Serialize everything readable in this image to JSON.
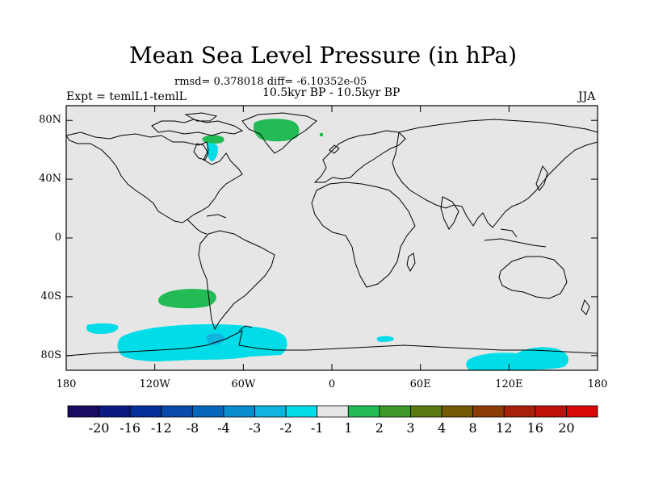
{
  "header": {
    "title": "Mean Sea Level Pressure (in hPa)",
    "stats": "rmsd= 0.378018 diff= -6.10352e-05",
    "experiment": "Expt = temlL1-temlL",
    "period": "10.5kyr BP - 10.5kyr BP",
    "season": "JJA"
  },
  "map": {
    "projection": "cylindrical equidistant",
    "lat_labels": [
      "80N",
      "40N",
      "0",
      "40S",
      "80S"
    ],
    "lat_values": [
      80,
      40,
      0,
      -40,
      -80
    ],
    "lon_labels": [
      "180",
      "120W",
      "60W",
      "0",
      "60E",
      "120E",
      "180"
    ],
    "lon_values": [
      -180,
      -120,
      -60,
      0,
      60,
      120,
      180
    ],
    "lat_range": [
      -90,
      90
    ],
    "lon_range": [
      -180,
      180
    ],
    "background_color": "#e6e6e6",
    "anomaly_regions": [
      {
        "name": "greenland-high",
        "sign": "positive",
        "bin": "1 to 2",
        "color": "#22bb55"
      },
      {
        "name": "hudson-bay-low",
        "sign": "negative",
        "bin": "-2 to -1",
        "color": "#00dde8"
      },
      {
        "name": "south-pacific-high",
        "sign": "positive",
        "bin": "1 to 2",
        "color": "#22bb55"
      },
      {
        "name": "antarctic-low",
        "sign": "negative",
        "bin": "-2 to -1",
        "color": "#00dde8"
      },
      {
        "name": "antarctic-low-core",
        "sign": "negative",
        "bin": "-3 to -2",
        "color": "#10b4e0"
      },
      {
        "name": "east-antarctic-low",
        "sign": "negative",
        "bin": "-2 to -1",
        "color": "#00dde8"
      }
    ]
  },
  "colorbar": {
    "labels": [
      "-20",
      "-16",
      "-12",
      "-8",
      "-4",
      "-3",
      "-2",
      "-1",
      "1",
      "2",
      "3",
      "4",
      "8",
      "12",
      "16",
      "20"
    ],
    "colors": [
      "#1a0a60",
      "#0c1a80",
      "#05309a",
      "#0a4aaa",
      "#0866bb",
      "#0a8ccc",
      "#10b4e0",
      "#00dde8",
      "#e6e6e6",
      "#22bb55",
      "#3e9a28",
      "#5a7a10",
      "#745a05",
      "#8c3c05",
      "#a8200a",
      "#c0100a",
      "#d80808"
    ]
  }
}
